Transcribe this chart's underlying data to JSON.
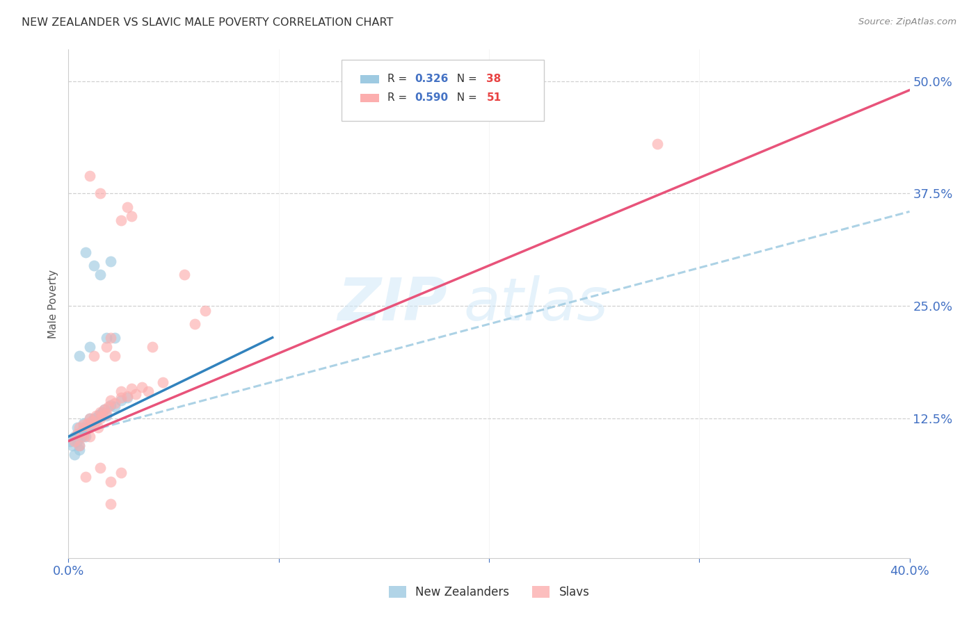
{
  "title": "NEW ZEALANDER VS SLAVIC MALE POVERTY CORRELATION CHART",
  "source": "Source: ZipAtlas.com",
  "ylabel": "Male Poverty",
  "ytick_labels": [
    "12.5%",
    "25.0%",
    "37.5%",
    "50.0%"
  ],
  "ytick_values": [
    0.125,
    0.25,
    0.375,
    0.5
  ],
  "xmin": 0.0,
  "xmax": 0.4,
  "ymin": -0.03,
  "ymax": 0.535,
  "watermark": "ZIPatlas",
  "legend_blue_R": "R = 0.326",
  "legend_blue_N": "N = 38",
  "legend_pink_R": "R = 0.590",
  "legend_pink_N": "N = 51",
  "blue_color": "#9ecae1",
  "pink_color": "#fcaeae",
  "blue_line_color": "#3182bd",
  "pink_line_color": "#e8537a",
  "dashed_line_color": "#9ecae1",
  "blue_scatter": [
    [
      0.001,
      0.1
    ],
    [
      0.002,
      0.095
    ],
    [
      0.003,
      0.085
    ],
    [
      0.003,
      0.105
    ],
    [
      0.004,
      0.1
    ],
    [
      0.004,
      0.115
    ],
    [
      0.005,
      0.108
    ],
    [
      0.005,
      0.095
    ],
    [
      0.005,
      0.09
    ],
    [
      0.006,
      0.11
    ],
    [
      0.006,
      0.105
    ],
    [
      0.007,
      0.115
    ],
    [
      0.007,
      0.12
    ],
    [
      0.008,
      0.112
    ],
    [
      0.008,
      0.105
    ],
    [
      0.009,
      0.115
    ],
    [
      0.01,
      0.118
    ],
    [
      0.01,
      0.125
    ],
    [
      0.011,
      0.12
    ],
    [
      0.012,
      0.125
    ],
    [
      0.013,
      0.122
    ],
    [
      0.014,
      0.128
    ],
    [
      0.015,
      0.13
    ],
    [
      0.016,
      0.132
    ],
    [
      0.017,
      0.135
    ],
    [
      0.018,
      0.128
    ],
    [
      0.02,
      0.14
    ],
    [
      0.022,
      0.138
    ],
    [
      0.025,
      0.145
    ],
    [
      0.028,
      0.148
    ],
    [
      0.005,
      0.195
    ],
    [
      0.01,
      0.205
    ],
    [
      0.012,
      0.295
    ],
    [
      0.015,
      0.285
    ],
    [
      0.018,
      0.215
    ],
    [
      0.02,
      0.3
    ],
    [
      0.008,
      0.31
    ],
    [
      0.022,
      0.215
    ]
  ],
  "pink_scatter": [
    [
      0.003,
      0.1
    ],
    [
      0.004,
      0.108
    ],
    [
      0.005,
      0.095
    ],
    [
      0.005,
      0.115
    ],
    [
      0.006,
      0.11
    ],
    [
      0.007,
      0.105
    ],
    [
      0.007,
      0.118
    ],
    [
      0.008,
      0.112
    ],
    [
      0.009,
      0.12
    ],
    [
      0.01,
      0.115
    ],
    [
      0.01,
      0.125
    ],
    [
      0.011,
      0.122
    ],
    [
      0.012,
      0.118
    ],
    [
      0.013,
      0.128
    ],
    [
      0.014,
      0.115
    ],
    [
      0.015,
      0.125
    ],
    [
      0.015,
      0.132
    ],
    [
      0.016,
      0.128
    ],
    [
      0.017,
      0.135
    ],
    [
      0.018,
      0.13
    ],
    [
      0.019,
      0.138
    ],
    [
      0.02,
      0.145
    ],
    [
      0.022,
      0.142
    ],
    [
      0.025,
      0.148
    ],
    [
      0.025,
      0.155
    ],
    [
      0.028,
      0.15
    ],
    [
      0.03,
      0.158
    ],
    [
      0.032,
      0.152
    ],
    [
      0.035,
      0.16
    ],
    [
      0.038,
      0.155
    ],
    [
      0.012,
      0.195
    ],
    [
      0.018,
      0.205
    ],
    [
      0.02,
      0.215
    ],
    [
      0.022,
      0.195
    ],
    [
      0.025,
      0.345
    ],
    [
      0.028,
      0.36
    ],
    [
      0.03,
      0.35
    ],
    [
      0.01,
      0.395
    ],
    [
      0.015,
      0.375
    ],
    [
      0.055,
      0.285
    ],
    [
      0.06,
      0.23
    ],
    [
      0.065,
      0.245
    ],
    [
      0.015,
      0.07
    ],
    [
      0.02,
      0.055
    ],
    [
      0.025,
      0.065
    ],
    [
      0.02,
      0.03
    ],
    [
      0.008,
      0.06
    ],
    [
      0.01,
      0.105
    ],
    [
      0.04,
      0.205
    ],
    [
      0.045,
      0.165
    ],
    [
      0.28,
      0.43
    ]
  ],
  "blue_line_x": [
    0.0,
    0.097
  ],
  "blue_line_y": [
    0.105,
    0.215
  ],
  "pink_line_x": [
    0.0,
    0.4
  ],
  "pink_line_y": [
    0.1,
    0.49
  ],
  "dashed_line_x": [
    0.0,
    0.4
  ],
  "dashed_line_y": [
    0.105,
    0.355
  ]
}
